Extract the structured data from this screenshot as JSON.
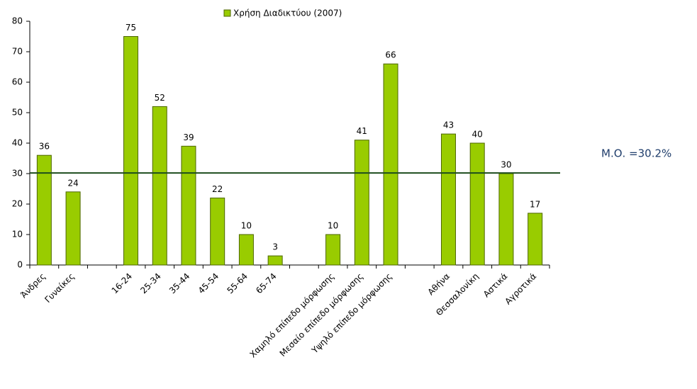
{
  "chart_data": {
    "type": "bar",
    "categories": [
      "Άνδρες",
      "Γυναίκες",
      null,
      "16-24",
      "25-34",
      "35-44",
      "45-54",
      "55-64",
      "65-74",
      null,
      "Χαμηλό επίπεδο μόρφωσης",
      "Μεσαίο επίπεδο μόρφωσης",
      "Υψηλό επίπεδο μόρφωσης",
      null,
      "Αθήνα",
      "Θεσσαλονίκη",
      "Αστικά",
      "Αγροτικά"
    ],
    "series": [
      {
        "name": "Χρήση Διαδικτύου (2007)",
        "color": "#99cc00",
        "values": [
          36,
          24,
          null,
          75,
          52,
          39,
          22,
          10,
          3,
          null,
          10,
          41,
          66,
          null,
          43,
          40,
          30,
          17
        ]
      }
    ],
    "ylim": [
      0,
      80
    ],
    "yticks": [
      0,
      10,
      20,
      30,
      40,
      50,
      60,
      70,
      80
    ],
    "legend": "top",
    "reference_line": {
      "value": 30.2,
      "label": "Μ.Ο. =30.2%",
      "color": "#1e4d1e"
    }
  }
}
